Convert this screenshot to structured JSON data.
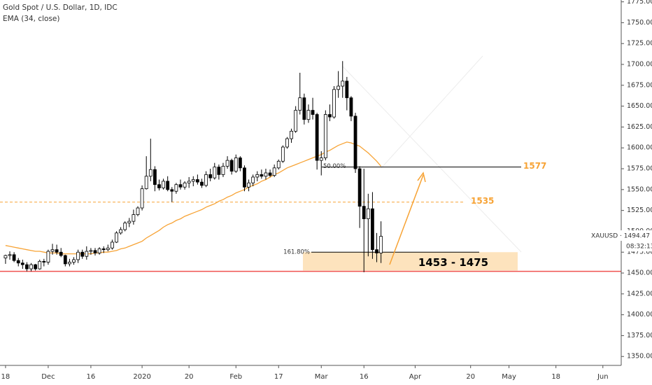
{
  "chart_data": {
    "type": "candlestick",
    "title": "Gold Spot / U.S. Dollar, 1D, IDC",
    "subtitle": "EMA (34, close)",
    "ylim": [
      1339.3,
      1777.2
    ],
    "yticks": [
      {
        "value": 1350,
        "label": "1350.00"
      },
      {
        "value": 1375,
        "label": "1375.00"
      },
      {
        "value": 1400,
        "label": "1400.00"
      },
      {
        "value": 1425,
        "label": "1425.00"
      },
      {
        "value": 1450,
        "label": "1450.00"
      },
      {
        "value": 1475,
        "label": "1475.00"
      },
      {
        "value": 1500,
        "label": "1500.00"
      },
      {
        "value": 1525,
        "label": "1525.00"
      },
      {
        "value": 1550,
        "label": "1550.00"
      },
      {
        "value": 1575,
        "label": "1575.00"
      },
      {
        "value": 1600,
        "label": "1600.00"
      },
      {
        "value": 1625,
        "label": "1625.00"
      },
      {
        "value": 1650,
        "label": "1650.00"
      },
      {
        "value": 1675,
        "label": "1675.00"
      },
      {
        "value": 1700,
        "label": "1700.00"
      },
      {
        "value": 1725,
        "label": "1725.00"
      },
      {
        "value": 1750,
        "label": "1750.00"
      },
      {
        "value": 1775,
        "label": "1775.00"
      }
    ],
    "xlim": [
      -1.3,
      144.3
    ],
    "xticks": [
      {
        "value": 0,
        "label": "18"
      },
      {
        "value": 10,
        "label": "Dec"
      },
      {
        "value": 20,
        "label": "16"
      },
      {
        "value": 32,
        "label": "2020"
      },
      {
        "value": 43,
        "label": "20"
      },
      {
        "value": 54,
        "label": "Feb"
      },
      {
        "value": 64,
        "label": "17"
      },
      {
        "value": 74,
        "label": "Mar"
      },
      {
        "value": 84,
        "label": "16"
      },
      {
        "value": 96,
        "label": "Apr"
      },
      {
        "value": 109,
        "label": "20"
      },
      {
        "value": 118,
        "label": "May"
      },
      {
        "value": 129,
        "label": "18"
      },
      {
        "value": 140,
        "label": "Jun"
      }
    ],
    "up_color": "#ffffff",
    "down_color": "#000000",
    "open": [
      1468,
      1471,
      1472,
      1465,
      1462,
      1460,
      1455,
      1460,
      1455,
      1464,
      1463,
      1476,
      1478,
      1475,
      1471,
      1461,
      1463,
      1466,
      1475,
      1470,
      1476,
      1477,
      1474,
      1479,
      1478,
      1480,
      1487,
      1498,
      1502,
      1510,
      1512,
      1520,
      1528,
      1551,
      1566,
      1574,
      1556,
      1552,
      1560,
      1550,
      1548,
      1556,
      1553,
      1558,
      1560,
      1562,
      1559,
      1555,
      1568,
      1564,
      1577,
      1568,
      1578,
      1585,
      1572,
      1588,
      1576,
      1553,
      1558,
      1565,
      1568,
      1566,
      1570,
      1567,
      1576,
      1584,
      1601,
      1611,
      1620,
      1645,
      1660,
      1634,
      1645,
      1640,
      1585,
      1588,
      1640,
      1637,
      1670,
      1674,
      1680,
      1660,
      1638,
      1575,
      1530,
      1515,
      1527,
      1478,
      1474
    ],
    "high": [
      1472,
      1476,
      1475,
      1468,
      1466,
      1463,
      1462,
      1461,
      1466,
      1467,
      1478,
      1485,
      1484,
      1480,
      1472,
      1467,
      1469,
      1478,
      1478,
      1482,
      1480,
      1480,
      1481,
      1482,
      1484,
      1490,
      1500,
      1505,
      1512,
      1516,
      1526,
      1530,
      1555,
      1590,
      1611,
      1578,
      1562,
      1563,
      1566,
      1553,
      1558,
      1562,
      1560,
      1565,
      1566,
      1568,
      1563,
      1572,
      1575,
      1582,
      1580,
      1582,
      1590,
      1587,
      1592,
      1590,
      1579,
      1562,
      1568,
      1572,
      1574,
      1575,
      1574,
      1580,
      1586,
      1603,
      1613,
      1623,
      1650,
      1690,
      1665,
      1652,
      1660,
      1642,
      1596,
      1645,
      1652,
      1674,
      1692,
      1704,
      1685,
      1662,
      1642,
      1578,
      1575,
      1545,
      1547,
      1498,
      1512
    ],
    "low": [
      1461,
      1466,
      1463,
      1458,
      1455,
      1452,
      1452,
      1453,
      1454,
      1458,
      1460,
      1472,
      1472,
      1469,
      1458,
      1458,
      1460,
      1462,
      1467,
      1466,
      1472,
      1471,
      1472,
      1474,
      1476,
      1478,
      1486,
      1496,
      1500,
      1505,
      1508,
      1518,
      1525,
      1550,
      1560,
      1548,
      1549,
      1550,
      1548,
      1535,
      1545,
      1550,
      1550,
      1552,
      1554,
      1556,
      1552,
      1553,
      1560,
      1562,
      1562,
      1565,
      1575,
      1568,
      1570,
      1572,
      1548,
      1548,
      1554,
      1560,
      1563,
      1562,
      1565,
      1565,
      1574,
      1582,
      1599,
      1606,
      1618,
      1640,
      1628,
      1630,
      1634,
      1574,
      1567,
      1585,
      1632,
      1635,
      1660,
      1660,
      1645,
      1632,
      1570,
      1504,
      1451,
      1470,
      1467,
      1463,
      1462
    ],
    "close": [
      1471,
      1472,
      1465,
      1462,
      1460,
      1455,
      1460,
      1455,
      1464,
      1463,
      1476,
      1478,
      1475,
      1471,
      1461,
      1463,
      1466,
      1475,
      1470,
      1476,
      1477,
      1474,
      1479,
      1478,
      1480,
      1487,
      1498,
      1502,
      1510,
      1512,
      1520,
      1528,
      1551,
      1566,
      1574,
      1556,
      1552,
      1560,
      1550,
      1548,
      1556,
      1553,
      1558,
      1560,
      1562,
      1559,
      1555,
      1568,
      1564,
      1577,
      1568,
      1578,
      1585,
      1572,
      1588,
      1576,
      1553,
      1558,
      1565,
      1568,
      1566,
      1570,
      1567,
      1576,
      1584,
      1601,
      1611,
      1620,
      1645,
      1660,
      1634,
      1645,
      1640,
      1585,
      1588,
      1640,
      1637,
      1670,
      1674,
      1680,
      1660,
      1638,
      1575,
      1530,
      1515,
      1527,
      1478,
      1474,
      1494
    ],
    "ema": {
      "color": "#f7a335",
      "values": [
        1483,
        1482,
        1481,
        1480,
        1479,
        1478,
        1477,
        1476,
        1476,
        1475,
        1474,
        1474,
        1474,
        1473,
        1473,
        1473,
        1473,
        1473,
        1473,
        1473,
        1473,
        1474,
        1474,
        1475,
        1475,
        1476,
        1477,
        1479,
        1480,
        1482,
        1484,
        1486,
        1488,
        1492,
        1495,
        1498,
        1501,
        1505,
        1508,
        1510,
        1513,
        1515,
        1518,
        1520,
        1522,
        1524,
        1526,
        1529,
        1531,
        1533,
        1536,
        1538,
        1541,
        1543,
        1546,
        1548,
        1550,
        1553,
        1555,
        1557,
        1560,
        1562,
        1565,
        1568,
        1570,
        1573,
        1576,
        1578,
        1580,
        1582,
        1584,
        1586,
        1588,
        1590,
        1592,
        1595,
        1597,
        1600,
        1603,
        1605,
        1607,
        1606,
        1604,
        1602,
        1598,
        1594,
        1589,
        1584,
        1578
      ]
    },
    "annotations": {
      "fib_50": {
        "label": "50.00%",
        "value": 1577
      },
      "fib_161": {
        "label": "161.80%",
        "value": 1475
      },
      "target": {
        "value": 1577,
        "color": "#f7a335"
      },
      "resistance": {
        "value": 1535,
        "color": "#f7a335"
      },
      "zone": {
        "label": "1453 - 1475",
        "low": 1453,
        "high": 1475,
        "color": "#fde3bd"
      },
      "support": {
        "value": 1452,
        "color": "#ef5350"
      }
    },
    "last_price": {
      "label": "XAUUSD · 1494.47",
      "value": 1494.47,
      "timer": "08:32:13"
    }
  }
}
